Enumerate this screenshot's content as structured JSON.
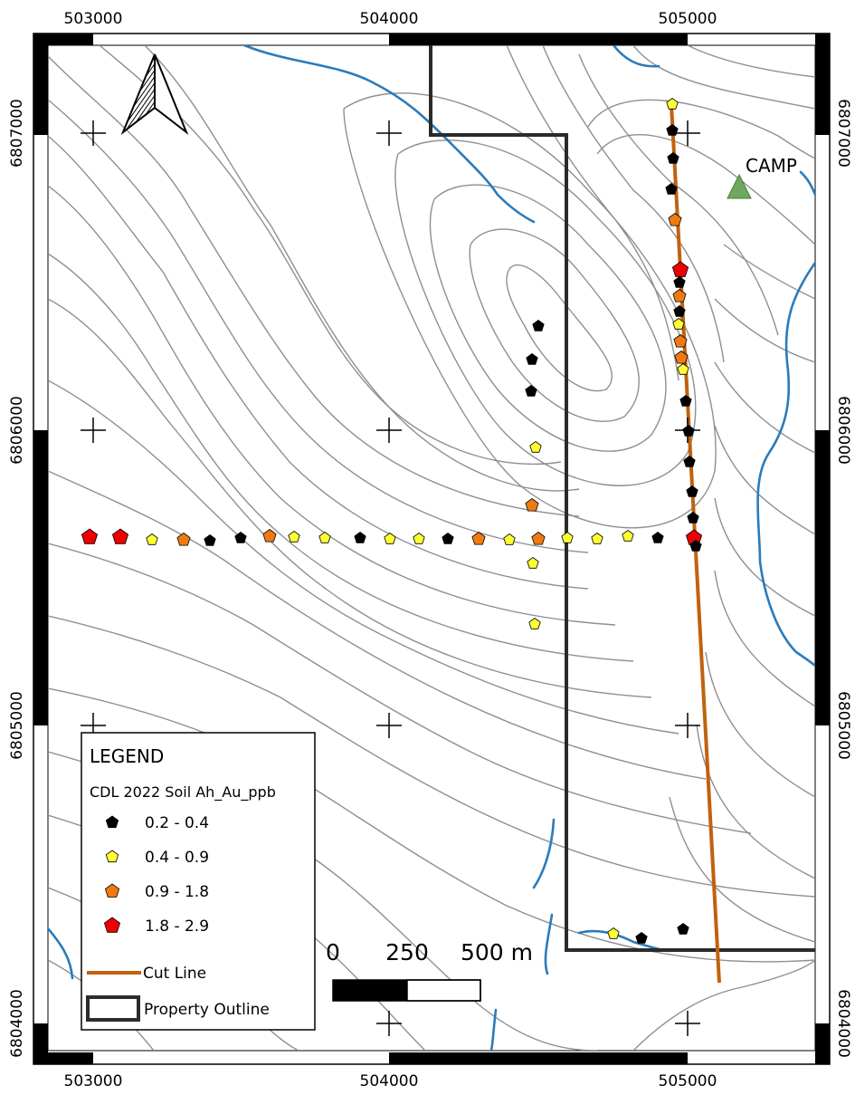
{
  "map": {
    "x_ticks": [
      "503000",
      "504000",
      "505000"
    ],
    "y_ticks": [
      "6807000",
      "6806000",
      "6805000",
      "6804000"
    ],
    "camp_label": "CAMP",
    "north_arrow": "north-arrow-icon",
    "colors": {
      "contour": "#8f8f8f",
      "stream": "#2b7bba",
      "property": "#2b2b2b",
      "cut_line": "#c0620e",
      "camp": "#6daa5c",
      "class_1": "#000000",
      "class_2": "#ffff33",
      "class_3": "#ef7a10",
      "class_4": "#ee0000"
    }
  },
  "legend": {
    "title": "LEGEND",
    "layer": "CDL 2022 Soil Ah_Au_ppb",
    "classes": [
      {
        "label": "0.2 - 0.4",
        "color": "#000000"
      },
      {
        "label": "0.4 - 0.9",
        "color": "#ffff33"
      },
      {
        "label": "0.9 - 1.8",
        "color": "#ef7a10"
      },
      {
        "label": "1.8 - 2.9",
        "color": "#ee0000"
      }
    ],
    "cut_line": "Cut Line",
    "property": "Property Outline"
  },
  "scale_bar": {
    "labels": [
      "0",
      "250",
      "500 m"
    ]
  }
}
